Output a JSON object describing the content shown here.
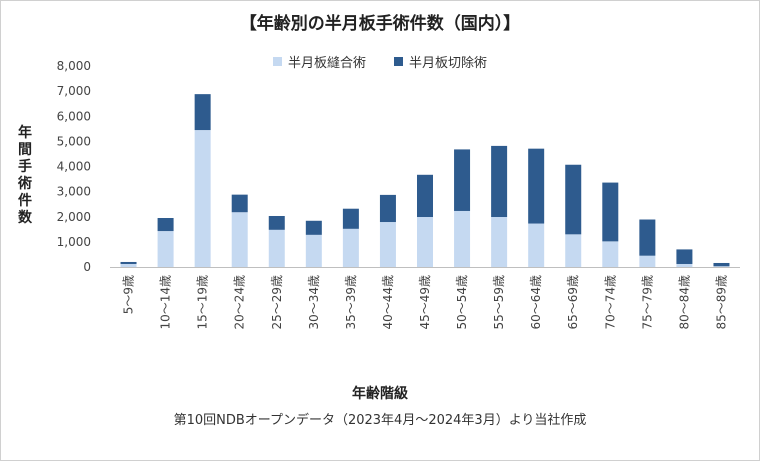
{
  "chart_data": {
    "type": "bar",
    "stacked": true,
    "title": "【年齢別の半月板手術件数（国内）】",
    "xlabel": "年齢階級",
    "ylabel": "年間手術件数",
    "note": "第10回NDBオープンデータ（2023年4月～2024年3月）より当社作成",
    "ylim": [
      0,
      8000
    ],
    "yticks": [
      "0",
      "1,000",
      "2,000",
      "3,000",
      "4,000",
      "5,000",
      "6,000",
      "7,000",
      "8,000"
    ],
    "grid": false,
    "legend_position": "top",
    "categories": [
      "5～9歳",
      "10～14歳",
      "15～19歳",
      "20～24歳",
      "25～29歳",
      "30～34歳",
      "35～39歳",
      "40～44歳",
      "45～49歳",
      "50～54歳",
      "55～59歳",
      "60～64歳",
      "65～69歳",
      "70～74歳",
      "75～79歳",
      "80～84歳",
      "85～89歳"
    ],
    "series": [
      {
        "name": "半月板縫合術",
        "color": "#c5d9f1",
        "values": [
          120,
          1430,
          5450,
          2180,
          1480,
          1280,
          1520,
          1790,
          1990,
          2230,
          1990,
          1730,
          1300,
          1020,
          450,
          120,
          30
        ]
      },
      {
        "name": "半月板切除術",
        "color": "#2e5b8e",
        "values": [
          80,
          520,
          1430,
          700,
          550,
          560,
          800,
          1080,
          1680,
          2450,
          2830,
          2980,
          2770,
          2340,
          1440,
          580,
          130
        ]
      }
    ]
  }
}
